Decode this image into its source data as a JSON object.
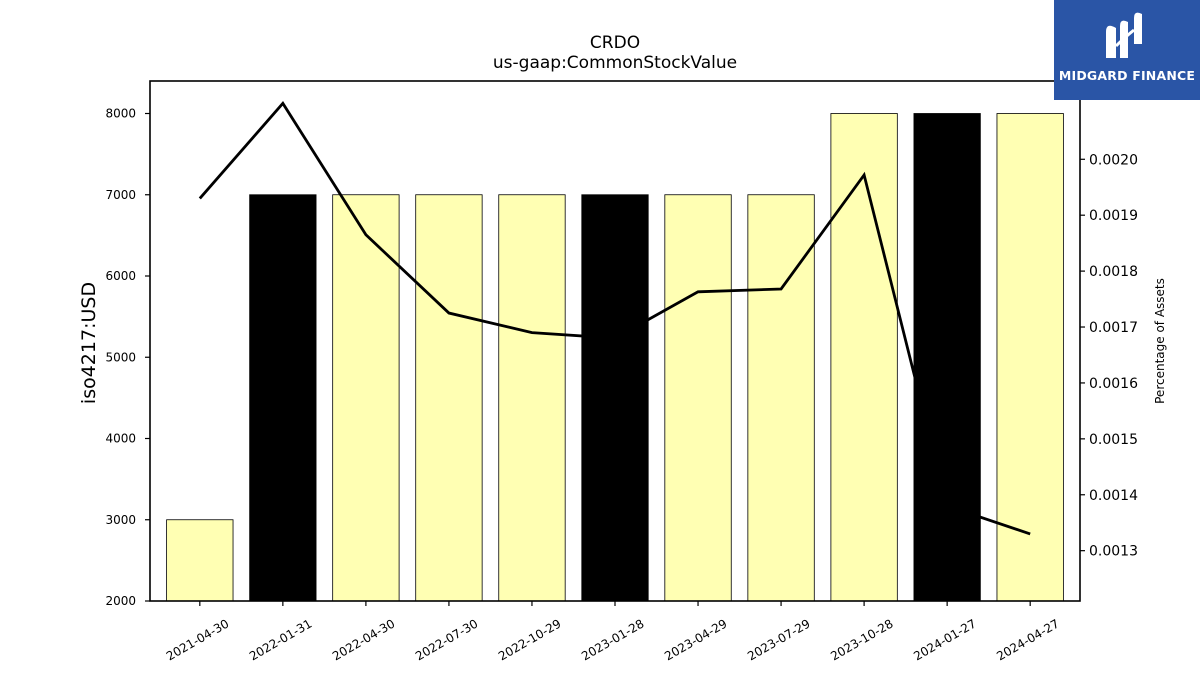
{
  "chart_data": {
    "type": "bar",
    "title": "CRDO",
    "subtitle": "us-gaap:CommonStockValue",
    "ylabel": "iso4217:USD",
    "y2label": "Percentage of Assets",
    "categories": [
      "2021-04-30",
      "2022-01-31",
      "2022-04-30",
      "2022-07-30",
      "2022-10-29",
      "2023-01-28",
      "2023-04-29",
      "2023-07-29",
      "2023-10-28",
      "2024-01-27",
      "2024-04-27"
    ],
    "values": [
      3000,
      7000,
      7000,
      7000,
      7000,
      7000,
      7000,
      7000,
      8000,
      8000,
      8000
    ],
    "bar_colors": [
      "#ffffb3",
      "#000000",
      "#ffffb3",
      "#ffffb3",
      "#ffffb3",
      "#000000",
      "#ffffb3",
      "#ffffb3",
      "#ffffb3",
      "#000000",
      "#ffffb3"
    ],
    "line_values": [
      0.00193,
      0.0021,
      0.001865,
      0.001725,
      0.00169,
      0.00168,
      0.001763,
      0.001768,
      0.001972,
      0.00138,
      0.00133
    ],
    "ylim": [
      2000,
      8400
    ],
    "y2lim": [
      0.00121,
      0.00214
    ],
    "yticks": [
      2000,
      3000,
      4000,
      5000,
      6000,
      7000,
      8000
    ],
    "y2ticks": [
      0.0013,
      0.0014,
      0.0015,
      0.0016,
      0.0017,
      0.0018,
      0.0019,
      0.002
    ],
    "y2tick_labels": [
      "0.0013",
      "0.0014",
      "0.0015",
      "0.0016",
      "0.0017",
      "0.0018",
      "0.0019",
      "0.0020"
    ],
    "grid": false,
    "colors": {
      "highlight": "#000000",
      "normal": "#ffffb3",
      "line": "#000000"
    }
  },
  "logo": {
    "text": "MIDGARD FINANCE",
    "bg": "#2a55a6"
  }
}
